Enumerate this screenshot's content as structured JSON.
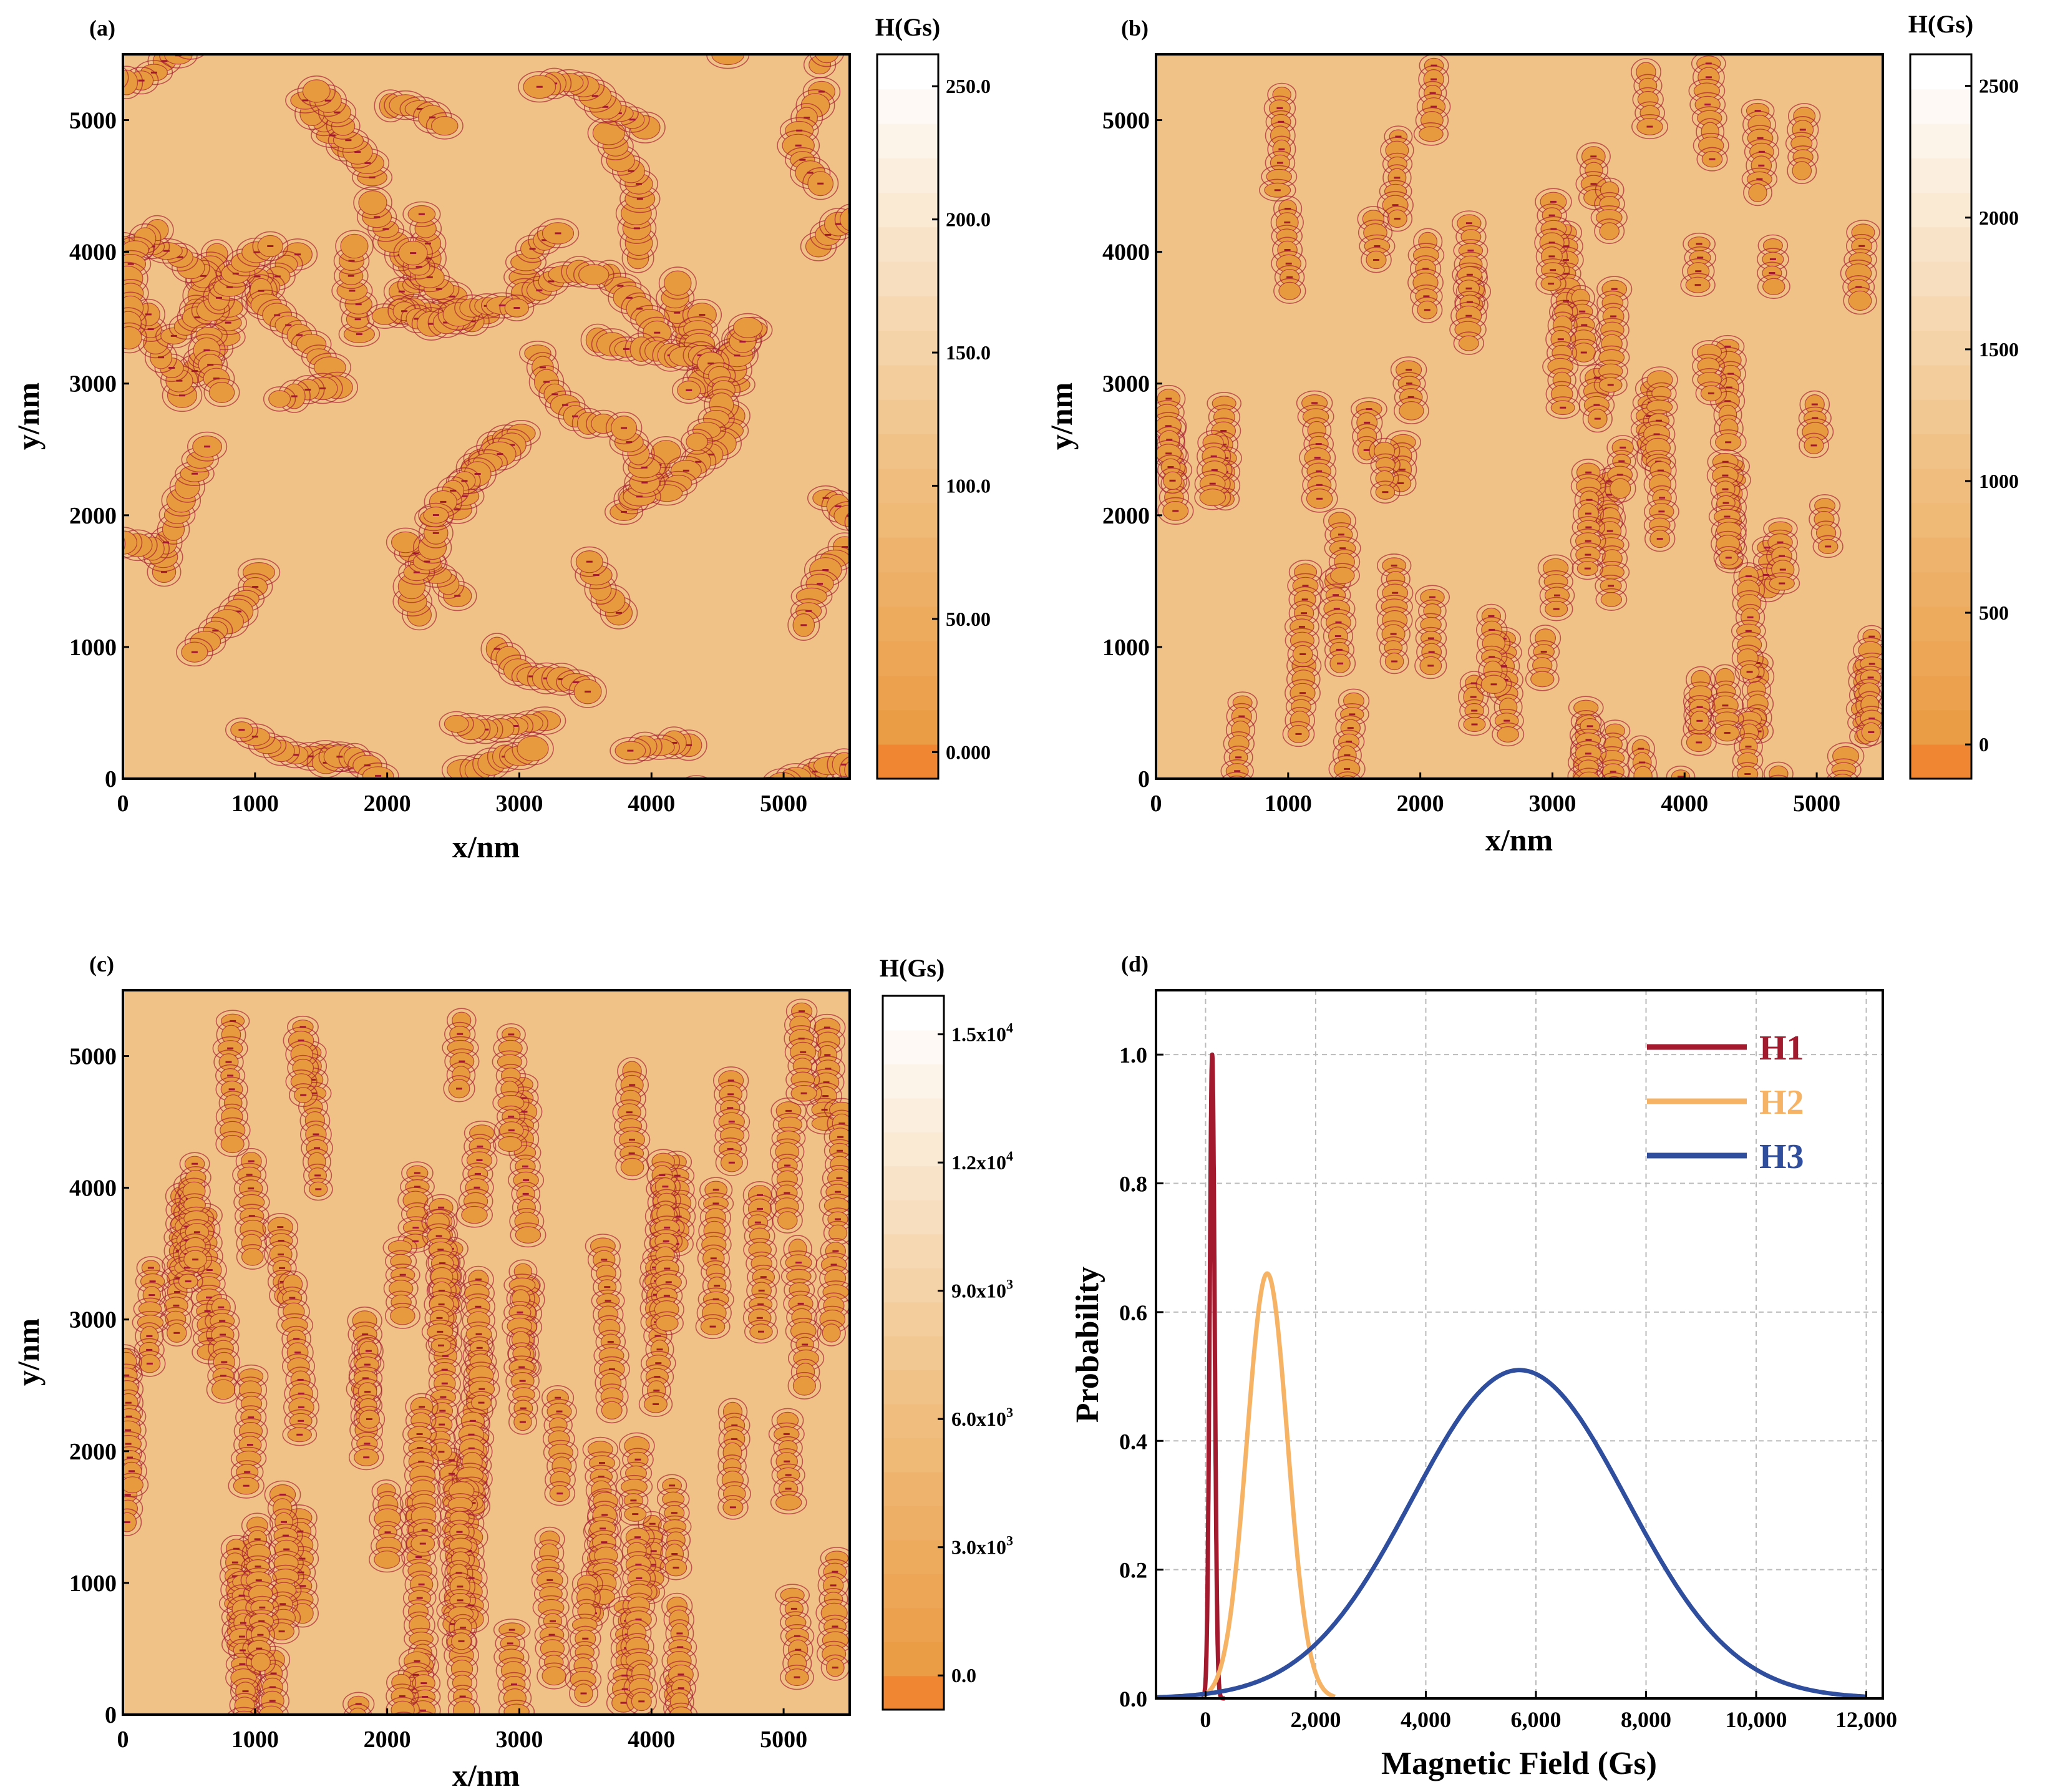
{
  "chart_data": [
    {
      "type": "heatmap",
      "panel_label": "(a)",
      "xlabel": "x/nm",
      "ylabel": "y/nm",
      "xlim": [
        0,
        5500
      ],
      "ylim": [
        0,
        5500
      ],
      "xticks": [
        0,
        1000,
        2000,
        3000,
        4000,
        5000
      ],
      "yticks": [
        0,
        1000,
        2000,
        3000,
        4000,
        5000
      ],
      "colorbar": {
        "title": "H(Gs)",
        "range": [
          -10,
          262
        ],
        "ticks": [
          {
            "value": 0,
            "label": "0.000"
          },
          {
            "value": 50,
            "label": "50.00"
          },
          {
            "value": 100,
            "label": "100.0"
          },
          {
            "value": 150,
            "label": "150.0"
          },
          {
            "value": 200,
            "label": "200.0"
          },
          {
            "value": 250,
            "label": "250.0"
          }
        ]
      },
      "pattern": "curved-chains"
    },
    {
      "type": "heatmap",
      "panel_label": "(b)",
      "xlabel": "x/nm",
      "ylabel": "y/nm",
      "xlim": [
        0,
        5500
      ],
      "ylim": [
        0,
        5500
      ],
      "xticks": [
        0,
        1000,
        2000,
        3000,
        4000,
        5000
      ],
      "yticks": [
        0,
        1000,
        2000,
        3000,
        4000,
        5000
      ],
      "colorbar": {
        "title": "H(Gs)",
        "range": [
          -130,
          2620
        ],
        "ticks": [
          {
            "value": 0,
            "label": "0"
          },
          {
            "value": 500,
            "label": "500"
          },
          {
            "value": 1000,
            "label": "1000"
          },
          {
            "value": 1500,
            "label": "1500"
          },
          {
            "value": 2000,
            "label": "2000"
          },
          {
            "value": 2500,
            "label": "2500"
          }
        ]
      },
      "pattern": "vertical-chains"
    },
    {
      "type": "heatmap",
      "panel_label": "(c)",
      "xlabel": "x/nm",
      "ylabel": "y/nm",
      "xlim": [
        0,
        5500
      ],
      "ylim": [
        0,
        5500
      ],
      "xticks": [
        0,
        1000,
        2000,
        3000,
        4000,
        5000
      ],
      "yticks": [
        0,
        1000,
        2000,
        3000,
        4000,
        5000
      ],
      "colorbar": {
        "title": "H(Gs)",
        "range": [
          -800,
          15900
        ],
        "ticks": [
          {
            "value": 0,
            "label": "0.0",
            "exp": ""
          },
          {
            "value": 3000,
            "label": "3.0x10",
            "exp": "3"
          },
          {
            "value": 6000,
            "label": "6.0x10",
            "exp": "3"
          },
          {
            "value": 9000,
            "label": "9.0x10",
            "exp": "3"
          },
          {
            "value": 12000,
            "label": "1.2x10",
            "exp": "4"
          },
          {
            "value": 15000,
            "label": "1.5x10",
            "exp": "4"
          }
        ]
      },
      "pattern": "long-vertical-chains"
    },
    {
      "type": "line",
      "panel_label": "(d)",
      "xlabel": "Magnetic Field (Gs)",
      "ylabel": "Probability",
      "xlim": [
        -900,
        12300
      ],
      "ylim": [
        0,
        1.1
      ],
      "xticks": [
        0,
        2000,
        4000,
        6000,
        8000,
        10000,
        12000
      ],
      "xtick_labels": [
        "0",
        "2,000",
        "4,000",
        "6,000",
        "8,000",
        "10,000",
        "12,000"
      ],
      "yticks": [
        0,
        0.2,
        0.4,
        0.6,
        0.8,
        1.0
      ],
      "ytick_labels": [
        "0.0",
        "0.2",
        "0.4",
        "0.6",
        "0.8",
        "1.0"
      ],
      "grid": true,
      "legend_position": "top-right",
      "series": [
        {
          "name": "H1",
          "color": "#a3192e",
          "mean": 120,
          "sigma": 45,
          "peak": 1.0,
          "range": [
            -50,
            350
          ]
        },
        {
          "name": "H2",
          "color": "#f7b365",
          "mean": 1120,
          "sigma": 370,
          "peak": 0.66,
          "range": [
            -50,
            2350
          ]
        },
        {
          "name": "H3",
          "color": "#2f4e9e",
          "mean": 5700,
          "sigma": 1950,
          "peak": 0.51,
          "range": [
            -900,
            12000
          ]
        }
      ]
    }
  ],
  "colors": {
    "map_base": "#f1c287",
    "chain_fill": "#e89a3f",
    "contour": "#a3192e",
    "colorbar_low": "#f08632",
    "colorbar_high": "#ffffff"
  }
}
